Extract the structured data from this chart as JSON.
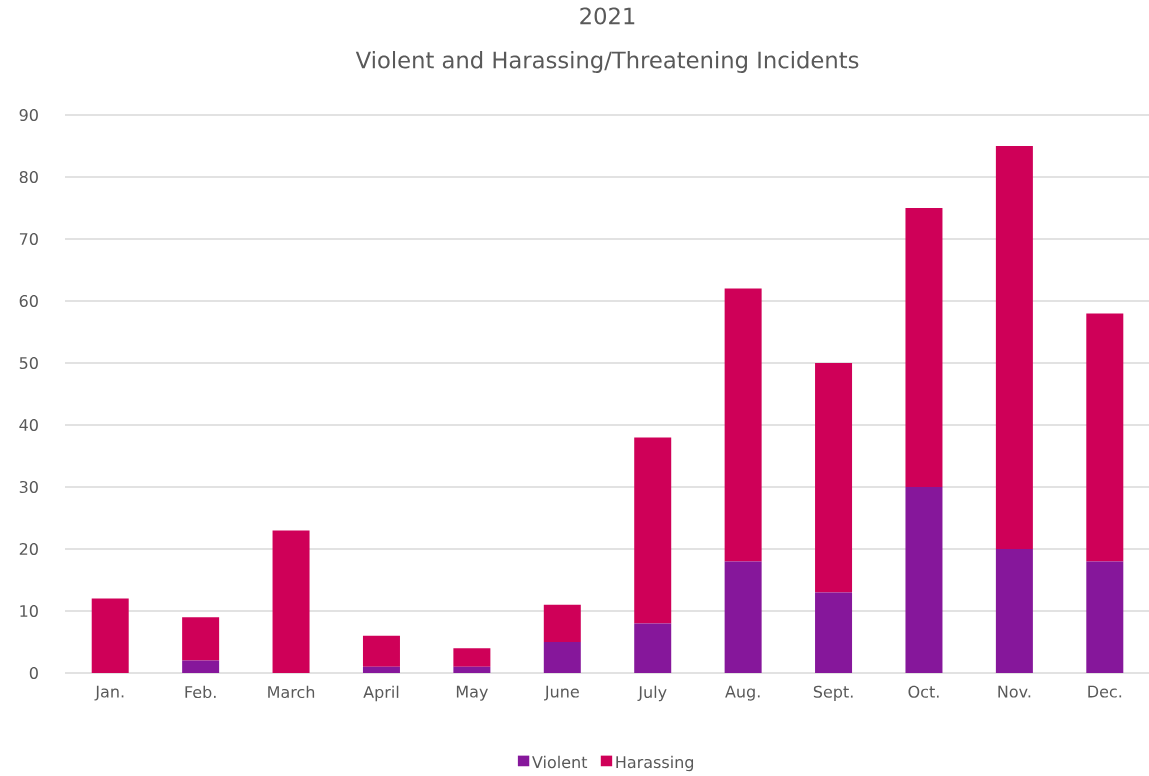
{
  "chart_data": {
    "type": "bar",
    "title": "2021",
    "subtitle": "Violent and Harassing/Threatening Incidents",
    "categories": [
      "Jan.",
      "Feb.",
      "March",
      "April",
      "May",
      "June",
      "July",
      "Aug.",
      "Sept.",
      "Oct.",
      "Nov.",
      "Dec."
    ],
    "series": [
      {
        "name": "Violent",
        "color": "#86179b",
        "values": [
          0,
          2,
          0,
          1,
          1,
          5,
          8,
          18,
          13,
          30,
          20,
          18
        ]
      },
      {
        "name": "Harassing",
        "color": "#cf0058",
        "values": [
          12,
          7,
          23,
          5,
          3,
          6,
          30,
          44,
          37,
          45,
          65,
          40
        ]
      }
    ],
    "stacked": true,
    "ylim": [
      0,
      90
    ],
    "yticks": [
      0,
      10,
      20,
      30,
      40,
      50,
      60,
      70,
      80,
      90
    ],
    "grid": "y",
    "legend": "bottom"
  }
}
